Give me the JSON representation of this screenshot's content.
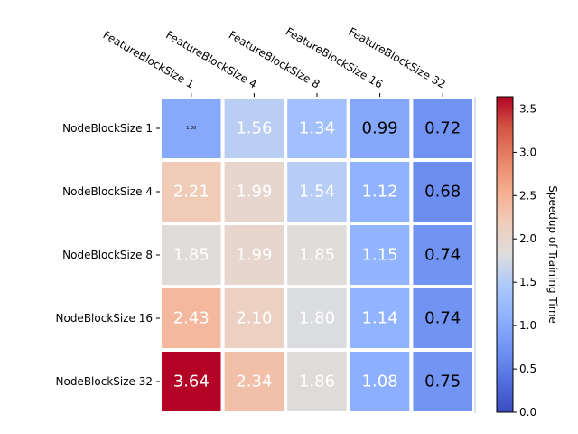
{
  "chart_data": {
    "type": "heatmap",
    "title": "",
    "xlabel": "",
    "ylabel": "",
    "x_categories": [
      "FeatureBlockSize 1",
      "FeatureBlockSize 4",
      "FeatureBlockSize 8",
      "FeatureBlockSize 16",
      "FeatureBlockSize 32"
    ],
    "y_categories": [
      "NodeBlockSize 1",
      "NodeBlockSize 4",
      "NodeBlockSize 8",
      "NodeBlockSize 16",
      "NodeBlockSize 32"
    ],
    "values": [
      [
        1.0,
        1.56,
        1.34,
        0.99,
        0.72
      ],
      [
        2.21,
        1.99,
        1.54,
        1.12,
        0.68
      ],
      [
        1.85,
        1.99,
        1.85,
        1.15,
        0.74
      ],
      [
        2.43,
        2.1,
        1.8,
        1.14,
        0.74
      ],
      [
        3.64,
        2.34,
        1.86,
        1.08,
        0.75
      ]
    ],
    "cell_labels": [
      [
        "1.00",
        "1.56",
        "1.34",
        "0.99",
        "0.72"
      ],
      [
        "2.21",
        "1.99",
        "1.54",
        "1.12",
        "0.68"
      ],
      [
        "1.85",
        "1.99",
        "1.85",
        "1.15",
        "0.74"
      ],
      [
        "2.43",
        "2.10",
        "1.80",
        "1.14",
        "0.74"
      ],
      [
        "3.64",
        "2.34",
        "1.86",
        "1.08",
        "0.75"
      ]
    ],
    "colormap": "coolwarm",
    "vmin": 0.0,
    "vmax": 3.64,
    "colorbar": {
      "label": "Speedup of Training Time",
      "ticks": [
        0.0,
        0.5,
        1.0,
        1.5,
        2.0,
        2.5,
        3.0,
        3.5
      ],
      "tick_labels": [
        "0.0",
        "0.5",
        "1.0",
        "1.5",
        "2.0",
        "2.5",
        "3.0",
        "3.5"
      ]
    },
    "x_tick_position": "top",
    "grid": false
  }
}
